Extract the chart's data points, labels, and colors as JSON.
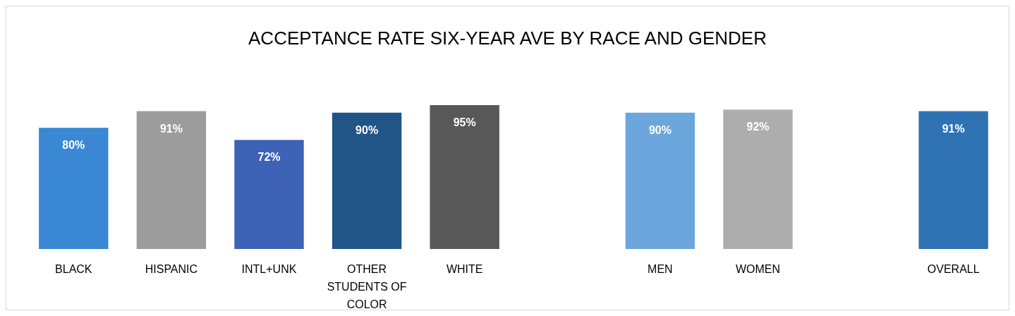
{
  "chart_data": {
    "type": "bar",
    "title": "ACCEPTANCE RATE SIX-YEAR AVE BY RACE AND GENDER",
    "categories": [
      "BLACK",
      "HISPANIC",
      "INTL+UNK",
      "OTHER STUDENTS OF COLOR",
      "WHITE",
      null,
      "MEN",
      "WOMEN",
      null,
      "OVERALL"
    ],
    "values": [
      80,
      91,
      72,
      90,
      95,
      null,
      90,
      92,
      null,
      91
    ],
    "colors": [
      "#3a88d4",
      "#9c9c9c",
      "#3e62b6",
      "#215487",
      "#585858",
      null,
      "#6ba6dc",
      "#adadad",
      null,
      "#2e72b4"
    ],
    "value_labels": [
      "80%",
      "91%",
      "72%",
      "90%",
      "95%",
      null,
      "90%",
      "92%",
      null,
      "91%"
    ]
  }
}
